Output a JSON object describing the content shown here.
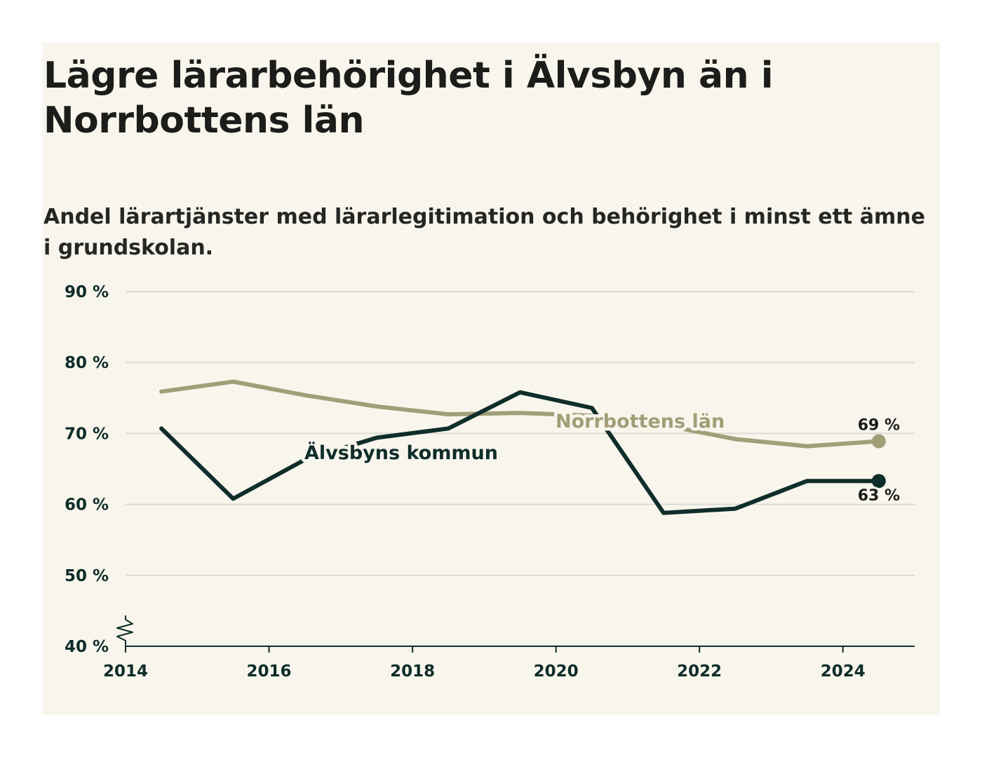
{
  "colors": {
    "background": "#f8f6ec",
    "alvsbyn": "#0f2d2a",
    "norrbotten": "#a19e78",
    "gridline": "#dcdad6",
    "axis": "#0e2c2a"
  },
  "chart_data": {
    "type": "line",
    "title": "Lägre lärarbehörighet i Älvsbyn än i Norrbottens län",
    "subtitle": "Andel lärartjänster med lärarlegitimation och behörighet i minst ett ämne i grundskolan.",
    "x": [
      2014.5,
      2015.5,
      2016.5,
      2017.5,
      2018.5,
      2019.5,
      2020.5,
      2021.5,
      2022.5,
      2023.5,
      2024.5
    ],
    "x_ticks": [
      2014,
      2016,
      2018,
      2020,
      2022,
      2024
    ],
    "x_tick_labels": [
      "2014",
      "2016",
      "2018",
      "2020",
      "2022",
      "2024"
    ],
    "xlim": [
      2014,
      2025
    ],
    "ylim": [
      40,
      90
    ],
    "y_ticks": [
      40,
      50,
      60,
      70,
      80,
      90
    ],
    "y_tick_labels": [
      "40 %",
      "50 %",
      "60 %",
      "70 %",
      "80 %",
      "90 %"
    ],
    "grid": true,
    "y_axis_break": true,
    "series": [
      {
        "name": "Norrbottens län",
        "values": [
          75.9,
          77.3,
          75.4,
          73.8,
          72.7,
          72.9,
          72.5,
          71.2,
          69.2,
          68.2,
          68.9
        ],
        "end_label": "69 %"
      },
      {
        "name": "Älvsbyns kommun",
        "values": [
          70.7,
          60.8,
          66.3,
          69.4,
          70.7,
          75.8,
          73.6,
          58.8,
          59.4,
          63.3,
          63.3
        ],
        "end_label": "63 %"
      }
    ]
  }
}
